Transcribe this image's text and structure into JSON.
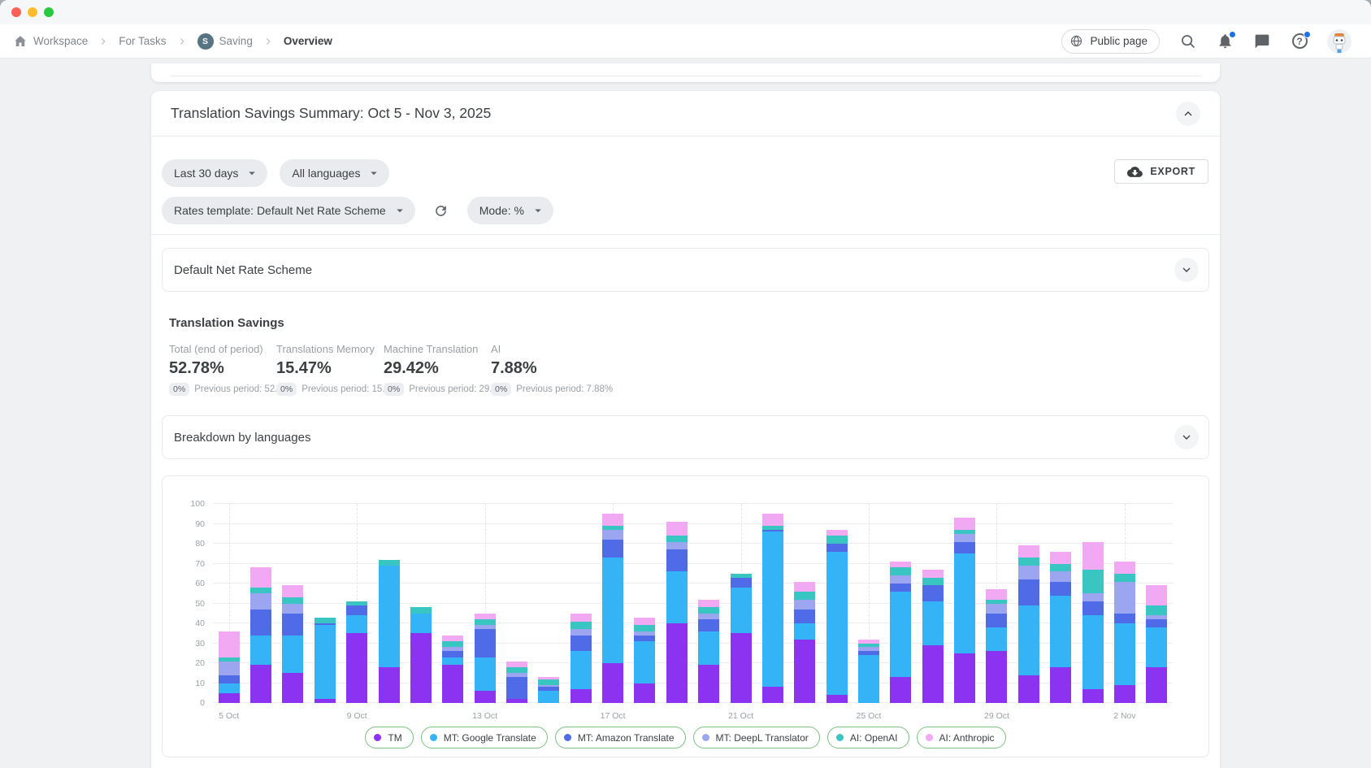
{
  "breadcrumb": {
    "items": [
      "Workspace",
      "For Tasks",
      "Saving",
      "Overview"
    ],
    "saving_badge": "S"
  },
  "topbar": {
    "public_page_label": "Public page",
    "help_glyph": "?"
  },
  "summary": {
    "title": "Translation Savings Summary: Oct 5 - Nov 3, 2025",
    "filters": {
      "date_range": "Last 30 days",
      "languages": "All languages",
      "rates_template": "Rates template: Default Net Rate Scheme",
      "mode": "Mode: %"
    },
    "export_label": "EXPORT",
    "rate_scheme_panel": "Default Net Rate Scheme",
    "savings_heading": "Translation Savings",
    "stats": [
      {
        "label": "Total (end of period)",
        "value": "52.78%",
        "delta": "0%",
        "previous": "Previous period: 52.78%"
      },
      {
        "label": "Translations Memory",
        "value": "15.47%",
        "delta": "0%",
        "previous": "Previous period: 15.47%"
      },
      {
        "label": "Machine Translation",
        "value": "29.42%",
        "delta": "0%",
        "previous": "Previous period: 29.42%"
      },
      {
        "label": "AI",
        "value": "7.88%",
        "delta": "0%",
        "previous": "Previous period: 7.88%"
      }
    ],
    "breakdown_panel": "Breakdown by languages"
  },
  "chart_data": {
    "type": "bar",
    "stacked": true,
    "title": "",
    "xlabel": "",
    "ylabel": "",
    "ylim": [
      0,
      100
    ],
    "ytick_step": 10,
    "xtick_every": 4,
    "grid": true,
    "legend_position": "bottom",
    "legend_border": "#7cc180",
    "x": [
      "5 Oct",
      "6 Oct",
      "7 Oct",
      "8 Oct",
      "9 Oct",
      "10 Oct",
      "11 Oct",
      "12 Oct",
      "13 Oct",
      "14 Oct",
      "15 Oct",
      "16 Oct",
      "17 Oct",
      "18 Oct",
      "19 Oct",
      "20 Oct",
      "21 Oct",
      "22 Oct",
      "23 Oct",
      "24 Oct",
      "25 Oct",
      "26 Oct",
      "27 Oct",
      "28 Oct",
      "29 Oct",
      "30 Oct",
      "31 Oct",
      "1 Nov",
      "2 Nov",
      "3 Nov"
    ],
    "series": [
      {
        "name": "TM",
        "color": "#8C33F2",
        "values": [
          5,
          19,
          15,
          2,
          35,
          18,
          35,
          19,
          6,
          2,
          0,
          7,
          20,
          10,
          40,
          19,
          35,
          8,
          32,
          4,
          0,
          13,
          29,
          25,
          26,
          14,
          18,
          7,
          9,
          18
        ]
      },
      {
        "name": "MT: Google Translate",
        "color": "#35B3F7",
        "values": [
          5,
          15,
          19,
          37,
          9,
          51,
          10,
          4,
          17,
          0,
          6,
          19,
          53,
          21,
          26,
          17,
          23,
          78,
          8,
          72,
          24,
          43,
          22,
          50,
          12,
          35,
          36,
          37,
          31,
          20
        ]
      },
      {
        "name": "MT: Amazon Translate",
        "color": "#4F6BE8",
        "values": [
          4,
          13,
          11,
          1,
          5,
          0,
          0,
          3,
          14,
          11,
          2,
          8,
          9,
          3,
          11,
          6,
          5,
          1,
          7,
          4,
          2,
          4,
          8,
          6,
          7,
          13,
          7,
          7,
          5,
          4
        ]
      },
      {
        "name": "MT: DeepL Translator",
        "color": "#9CA5EF",
        "values": [
          7,
          8,
          5,
          0,
          0,
          0,
          0,
          2,
          2,
          2,
          1,
          3,
          5,
          2,
          4,
          3,
          0,
          0,
          5,
          0,
          2,
          4,
          0,
          4,
          5,
          7,
          5,
          4,
          16,
          2
        ]
      },
      {
        "name": "AI: OpenAI",
        "color": "#39C5C1",
        "values": [
          2,
          3,
          3,
          3,
          2,
          3,
          3,
          3,
          3,
          3,
          3,
          4,
          2,
          3,
          3,
          3,
          2,
          2,
          4,
          4,
          2,
          4,
          4,
          2,
          2,
          4,
          4,
          12,
          4,
          5
        ]
      },
      {
        "name": "AI: Anthropic",
        "color": "#F1A9F3",
        "values": [
          13,
          10,
          6,
          0,
          0,
          0,
          0,
          3,
          3,
          3,
          1,
          4,
          6,
          4,
          7,
          4,
          0,
          6,
          5,
          3,
          2,
          3,
          4,
          6,
          5,
          6,
          6,
          14,
          6,
          10
        ]
      }
    ]
  }
}
